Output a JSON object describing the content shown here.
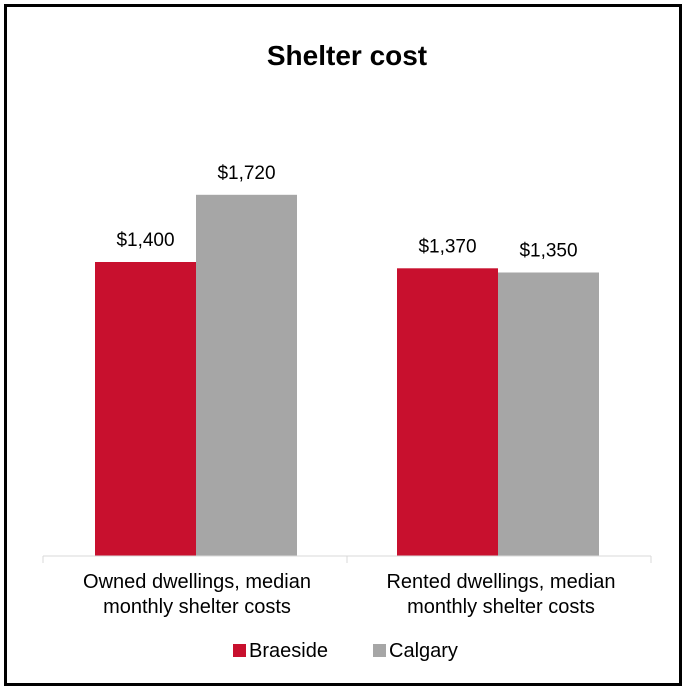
{
  "chart_data": {
    "type": "bar",
    "title": "Shelter cost",
    "categories": [
      [
        "Owned dwellings, median",
        "monthly shelter costs"
      ],
      [
        "Rented dwellings, median",
        "monthly shelter costs"
      ]
    ],
    "series": [
      {
        "name": "Braeside",
        "values": [
          1400,
          1370
        ],
        "labels": [
          "$1,400",
          "$1,370"
        ],
        "color": "#c8102e"
      },
      {
        "name": "Calgary",
        "values": [
          1720,
          1350
        ],
        "labels": [
          "$1,720",
          "$1,350"
        ],
        "color": "#a6a6a6"
      }
    ],
    "ylim": [
      0,
      2000
    ],
    "grid": false,
    "legend": "bottom"
  }
}
